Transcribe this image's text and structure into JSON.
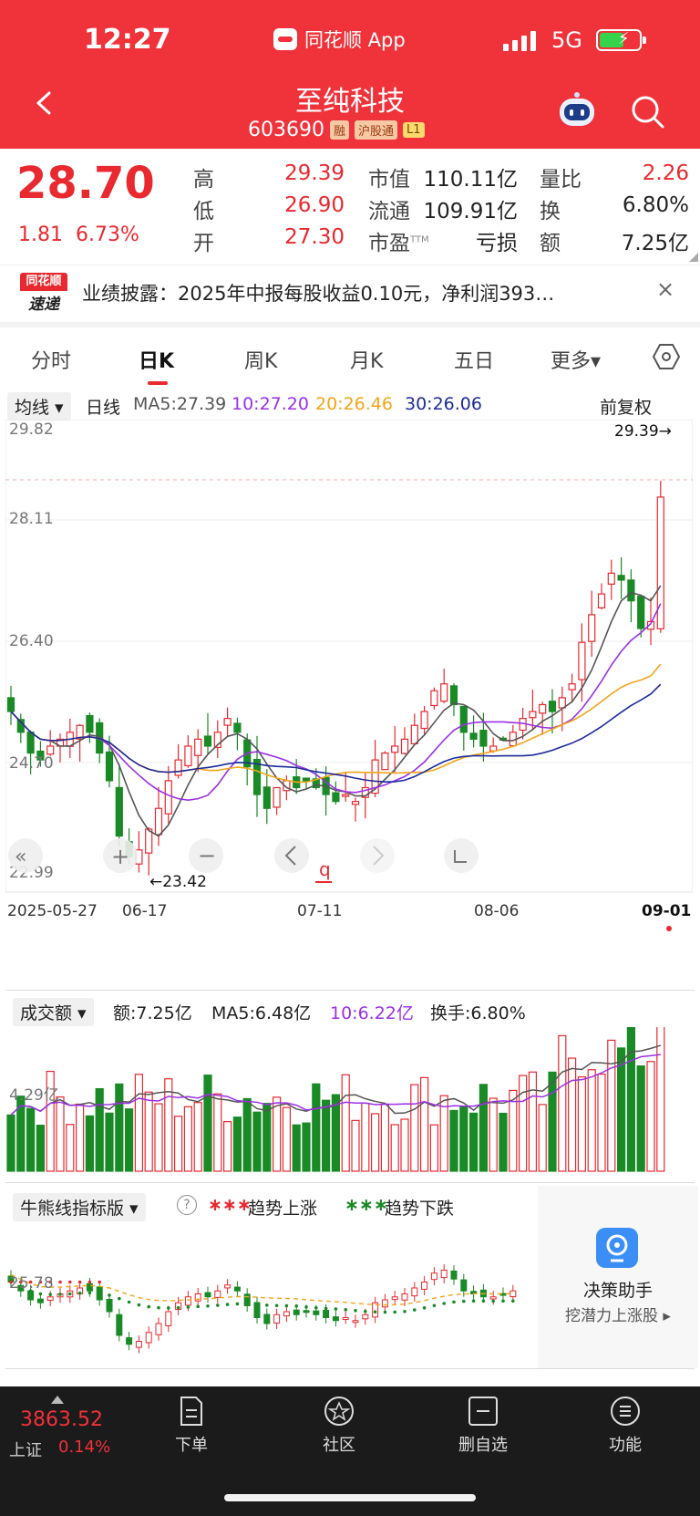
{
  "status": {
    "time": "12:27",
    "app_name": "同花顺 App",
    "network": "5G"
  },
  "header": {
    "title": "至纯科技",
    "code": "603690",
    "tags": [
      "融",
      "沪股通",
      "L1"
    ]
  },
  "quote": {
    "price": "28.70",
    "change": "1.81",
    "change_pct": "6.73%",
    "rows": [
      {
        "label": "高",
        "value": "29.39",
        "label2": "市值",
        "value2": "110.11亿",
        "label3": "量比",
        "value3": "2.26"
      },
      {
        "label": "低",
        "value": "26.90",
        "label2": "流通",
        "value2": "109.91亿",
        "label3": "换",
        "value3": "6.80%"
      },
      {
        "label": "开",
        "value": "27.30",
        "label2": "市盈",
        "label2_sup": "TTM",
        "value2": "亏损",
        "label3": "额",
        "value3": "7.25亿"
      }
    ]
  },
  "news": {
    "logo_top": "同花顺",
    "logo_bottom": "速递",
    "text": "业绩披露：2025年中报每股收益0.10元，净利润393…",
    "close": "×"
  },
  "tabs": [
    "分时",
    "日K",
    "周K",
    "月K",
    "五日",
    "更多▾"
  ],
  "ma_bar": {
    "select": "均线 ▾",
    "period": "日线",
    "ma5": "MA5:27.39",
    "ma10": "10:27.20",
    "ma20": "20:26.46",
    "ma30": "30:26.06",
    "adjust": "前复权"
  },
  "kchart": {
    "y_labels": [
      "29.82",
      "28.11",
      "26.40",
      "24.70",
      "22.99"
    ],
    "x_labels": [
      "2025-05-27",
      "06-17",
      "07-11",
      "08-06",
      "09-01"
    ],
    "high_marker": "29.39→",
    "low_marker": "←23.42",
    "mid_marker": "q",
    "colors": {
      "up": "#e8292f",
      "down": "#1a8a26",
      "ma5": "#555555",
      "ma10": "#9b30e6",
      "ma20": "#f2a51a",
      "ma30": "#1d2b9a"
    }
  },
  "volume": {
    "select": "成交额 ▾",
    "amount": "额:7.25亿",
    "ma5": "MA5:6.48亿",
    "ma10": "10:6.22亿",
    "turnover": "换手:6.80%",
    "y_label": "4.29亿"
  },
  "indicator": {
    "select": "牛熊线指标版 ▾",
    "help": "?",
    "legend_up": "趋势上涨",
    "legend_down": "趋势下跌",
    "y_label": "25.78"
  },
  "assistant": {
    "title": "决策助手",
    "subtitle": "挖潜力上涨股 ▸"
  },
  "bottom": {
    "index_value": "3863.52",
    "index_name": "上证",
    "index_pct": "0.14%",
    "nav": [
      "下单",
      "社区",
      "删自选",
      "功能"
    ]
  }
}
